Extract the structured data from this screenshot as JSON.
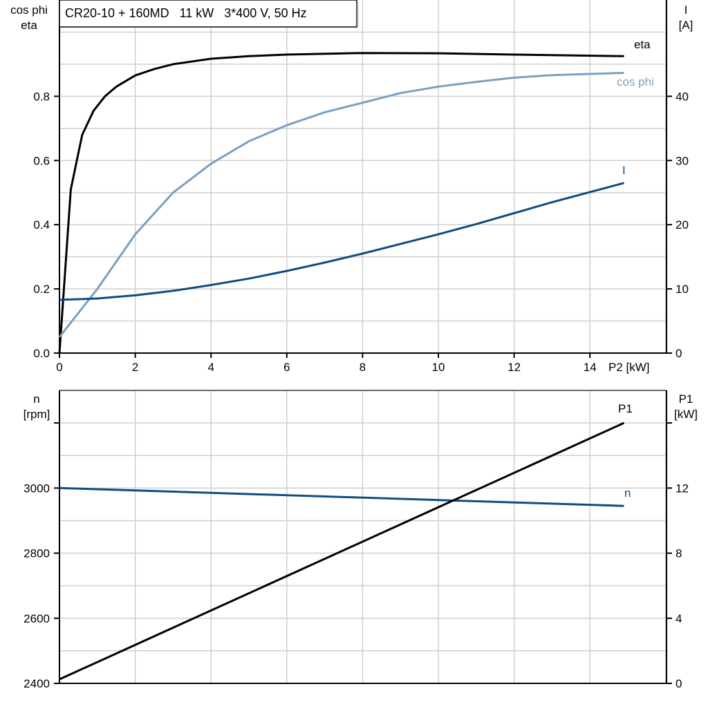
{
  "title": "CR20-10 + 160MD   11 kW   3*400 V, 50 Hz",
  "chart_data": [
    {
      "type": "line",
      "xlabel": "P2 [kW]",
      "ylabel_left": [
        "cos phi",
        "eta"
      ],
      "ylabel_right": [
        "I",
        "[A]"
      ],
      "xlim": [
        0,
        16
      ],
      "x_ticks": [
        0,
        2,
        4,
        6,
        8,
        10,
        12,
        14
      ],
      "ylim_left": [
        0,
        1.1
      ],
      "y_ticks_left": [
        "0.0",
        "0.2",
        "0.4",
        "0.6",
        "0.8"
      ],
      "ylim_right": [
        0,
        55
      ],
      "y_ticks_right": [
        0,
        10,
        20,
        30,
        40
      ],
      "grid": true,
      "series": [
        {
          "name": "eta",
          "axis": "left",
          "color": "#000000",
          "x": [
            0,
            0.3,
            0.6,
            0.9,
            1.2,
            1.5,
            2,
            2.5,
            3,
            4,
            5,
            6,
            8,
            10,
            12,
            14.9
          ],
          "y": [
            0,
            0.51,
            0.68,
            0.755,
            0.8,
            0.83,
            0.865,
            0.885,
            0.9,
            0.917,
            0.925,
            0.93,
            0.935,
            0.934,
            0.93,
            0.925
          ]
        },
        {
          "name": "cos phi",
          "axis": "left",
          "color": "#7a9fc0",
          "x": [
            0,
            1,
            2,
            3,
            4,
            5,
            6,
            7,
            8,
            9,
            10,
            11,
            12,
            13,
            14.9
          ],
          "y": [
            0.05,
            0.2,
            0.37,
            0.5,
            0.59,
            0.66,
            0.71,
            0.75,
            0.78,
            0.81,
            0.83,
            0.845,
            0.858,
            0.866,
            0.873
          ]
        },
        {
          "name": "I",
          "axis": "right",
          "color": "#0f4c81",
          "x": [
            0,
            1,
            2,
            3,
            4,
            5,
            6,
            7,
            8,
            9,
            10,
            11,
            12,
            13,
            14.9
          ],
          "y": [
            8.3,
            8.5,
            9.0,
            9.7,
            10.6,
            11.6,
            12.8,
            14.1,
            15.5,
            17.0,
            18.5,
            20.1,
            21.8,
            23.5,
            26.5
          ]
        }
      ]
    },
    {
      "type": "line",
      "ylabel_left": [
        "n",
        "[rpm]"
      ],
      "ylabel_right": [
        "P1",
        "[kW]"
      ],
      "xlim": [
        0,
        16
      ],
      "ylim_left": [
        2400,
        3300
      ],
      "y_ticks_left": [
        "2400",
        "2600",
        "2800",
        "3000",
        ""
      ],
      "ylim_right": [
        0,
        18
      ],
      "y_ticks_right": [
        "0",
        "4",
        "8",
        "12",
        ""
      ],
      "grid": true,
      "series": [
        {
          "name": "n",
          "axis": "left",
          "color": "#0f4c81",
          "x": [
            0,
            14.9
          ],
          "y": [
            3000,
            2945
          ]
        },
        {
          "name": "P1",
          "axis": "right",
          "color": "#000000",
          "x": [
            0,
            14.9
          ],
          "y": [
            0.25,
            16.0
          ]
        }
      ]
    }
  ]
}
